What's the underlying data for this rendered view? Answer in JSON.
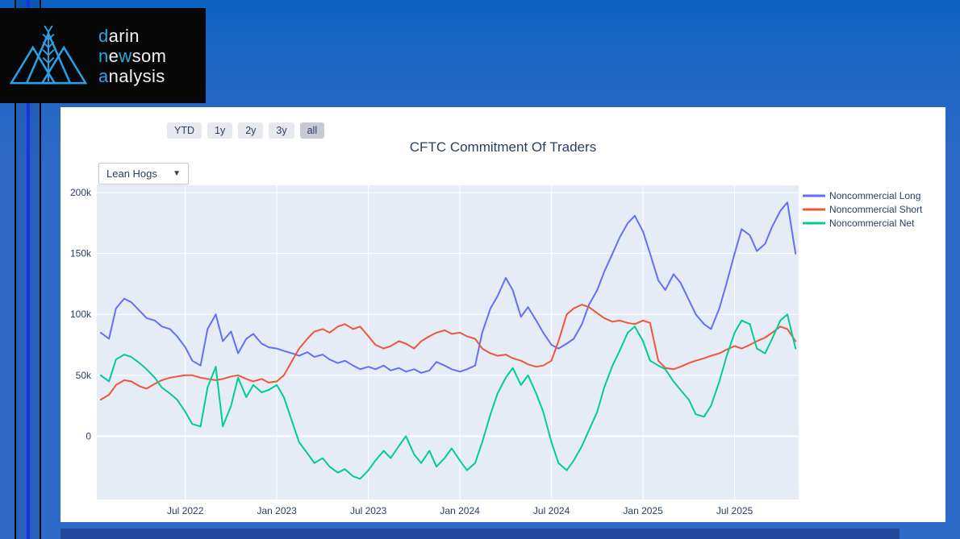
{
  "logo": {
    "accent_color": "#2BA8E0",
    "text_color": "#F2F2F2",
    "lines": [
      {
        "segments": [
          {
            "t": "d",
            "accent": true
          },
          {
            "t": "arin",
            "accent": false
          }
        ]
      },
      {
        "segments": [
          {
            "t": "n",
            "accent": true
          },
          {
            "t": "e",
            "accent": false
          },
          {
            "t": "w",
            "accent": true
          },
          {
            "t": "som",
            "accent": false
          }
        ]
      },
      {
        "segments": [
          {
            "t": "a",
            "accent": true
          },
          {
            "t": "nalysis",
            "accent": false
          }
        ]
      }
    ]
  },
  "theme": {
    "page-top": "#0A61C0",
    "page-bg": "#2E6AC7",
    "stripe-accent": "#1534E8",
    "stripe-dark": "#05070D",
    "logo-bg": "#070708",
    "card-bg": "#FFFFFF",
    "bottom-bar": "#20499B",
    "button-bg": "#E8E9EE",
    "button-active-bg": "#C7C9D3",
    "button-text": "#2A3F5F",
    "font-navy": "#2A3F5F",
    "dropdown-border": "#C3CBD6"
  },
  "range_buttons": [
    {
      "label": "YTD",
      "active": false
    },
    {
      "label": "1y",
      "active": false
    },
    {
      "label": "2y",
      "active": false
    },
    {
      "label": "3y",
      "active": false
    },
    {
      "label": "all",
      "active": true
    }
  ],
  "dropdown": {
    "value": "Lean Hogs",
    "chevron": "▼"
  },
  "chart_data": {
    "type": "line",
    "title": "CFTC Commitment Of Traders",
    "commodity": "Lean Hogs",
    "y_unit": "k (thousand contracts)",
    "grid": true,
    "legend_position": "right",
    "plot_bg": "#E5ECF6",
    "grid_color": "#FFFFFF",
    "font_color": "#2A3F5F",
    "ylim": [
      -52,
      206
    ],
    "xlim_months": [
      0.2,
      46.2
    ],
    "yticks": [
      {
        "label": "200k",
        "v": 200
      },
      {
        "label": "150k",
        "v": 150
      },
      {
        "label": "100k",
        "v": 100
      },
      {
        "label": "50k",
        "v": 50
      },
      {
        "label": "0",
        "v": 0
      }
    ],
    "xticks": [
      {
        "label": "Jul 2022",
        "date": "2022-07-01"
      },
      {
        "label": "Jan 2023",
        "date": "2023-01-01"
      },
      {
        "label": "Jul 2023",
        "date": "2023-07-01"
      },
      {
        "label": "Jan 2024",
        "date": "2024-01-01"
      },
      {
        "label": "Jul 2024",
        "date": "2024-07-01"
      },
      {
        "label": "Jan 2025",
        "date": "2025-01-01"
      },
      {
        "label": "Jul 2025",
        "date": "2025-07-01"
      }
    ],
    "x_dates": [
      "2022-01-15",
      "2022-02-01",
      "2022-02-15",
      "2022-03-01",
      "2022-03-15",
      "2022-04-01",
      "2022-04-15",
      "2022-05-01",
      "2022-05-15",
      "2022-06-01",
      "2022-06-15",
      "2022-07-01",
      "2022-07-15",
      "2022-08-01",
      "2022-08-15",
      "2022-09-01",
      "2022-09-15",
      "2022-10-01",
      "2022-10-15",
      "2022-11-01",
      "2022-11-15",
      "2022-12-01",
      "2022-12-15",
      "2023-01-01",
      "2023-01-15",
      "2023-02-01",
      "2023-02-15",
      "2023-03-01",
      "2023-03-15",
      "2023-04-01",
      "2023-04-15",
      "2023-05-01",
      "2023-05-15",
      "2023-06-01",
      "2023-06-15",
      "2023-07-01",
      "2023-07-15",
      "2023-08-01",
      "2023-08-15",
      "2023-09-01",
      "2023-09-15",
      "2023-10-01",
      "2023-10-15",
      "2023-11-01",
      "2023-11-15",
      "2023-12-01",
      "2023-12-15",
      "2024-01-01",
      "2024-01-15",
      "2024-02-01",
      "2024-02-15",
      "2024-03-01",
      "2024-03-15",
      "2024-04-01",
      "2024-04-15",
      "2024-05-01",
      "2024-05-15",
      "2024-06-01",
      "2024-06-15",
      "2024-07-01",
      "2024-07-15",
      "2024-08-01",
      "2024-08-15",
      "2024-09-01",
      "2024-09-15",
      "2024-10-01",
      "2024-10-15",
      "2024-11-01",
      "2024-11-15",
      "2024-12-01",
      "2024-12-15",
      "2025-01-01",
      "2025-01-15",
      "2025-02-01",
      "2025-02-15",
      "2025-03-01",
      "2025-03-15",
      "2025-04-01",
      "2025-04-15",
      "2025-05-01",
      "2025-05-15",
      "2025-06-01",
      "2025-06-15",
      "2025-07-01",
      "2025-07-15",
      "2025-08-01",
      "2025-08-15",
      "2025-09-01",
      "2025-09-15",
      "2025-10-01",
      "2025-10-15",
      "2025-11-01"
    ],
    "series": [
      {
        "name": "Noncommercial Long",
        "color": "#636EFA",
        "values": [
          85,
          80,
          105,
          113,
          110,
          103,
          97,
          95,
          90,
          88,
          82,
          73,
          62,
          58,
          88,
          100,
          78,
          86,
          68,
          80,
          84,
          76,
          73,
          72,
          70,
          68,
          66,
          69,
          65,
          67,
          63,
          60,
          62,
          58,
          55,
          57,
          55,
          58,
          54,
          56,
          53,
          55,
          52,
          54,
          61,
          58,
          55,
          53,
          55,
          58,
          85,
          105,
          115,
          130,
          120,
          98,
          106,
          95,
          85,
          75,
          72,
          76,
          80,
          92,
          108,
          120,
          135,
          150,
          163,
          175,
          181,
          168,
          150,
          128,
          120,
          133,
          126,
          112,
          100,
          92,
          88,
          105,
          125,
          150,
          170,
          165,
          152,
          158,
          172,
          185,
          192,
          150
        ]
      },
      {
        "name": "Noncommercial Short",
        "color": "#EF553B",
        "values": [
          30,
          34,
          42,
          46,
          45,
          41,
          39,
          43,
          46,
          48,
          49,
          50,
          50,
          48,
          47,
          46,
          47,
          49,
          50,
          47,
          45,
          47,
          44,
          45,
          50,
          62,
          72,
          80,
          86,
          88,
          85,
          90,
          92,
          88,
          90,
          82,
          75,
          72,
          74,
          78,
          76,
          72,
          78,
          82,
          85,
          87,
          84,
          85,
          82,
          80,
          72,
          68,
          66,
          67,
          64,
          62,
          59,
          57,
          58,
          62,
          78,
          100,
          105,
          108,
          106,
          101,
          97,
          94,
          95,
          93,
          92,
          95,
          93,
          62,
          56,
          55,
          57,
          60,
          62,
          64,
          66,
          68,
          71,
          74,
          72,
          75,
          78,
          81,
          85,
          90,
          88,
          78
        ]
      },
      {
        "name": "Noncommercial Net",
        "color": "#00CC96",
        "values": [
          50,
          45,
          63,
          67,
          65,
          60,
          55,
          48,
          40,
          35,
          30,
          20,
          10,
          8,
          40,
          57,
          8,
          25,
          48,
          32,
          42,
          36,
          38,
          42,
          32,
          12,
          -5,
          -14,
          -22,
          -18,
          -25,
          -30,
          -27,
          -33,
          -35,
          -28,
          -20,
          -12,
          -18,
          -8,
          0,
          -15,
          -22,
          -12,
          -25,
          -18,
          -10,
          -20,
          -28,
          -22,
          -5,
          18,
          35,
          48,
          56,
          42,
          50,
          35,
          20,
          -5,
          -22,
          -28,
          -20,
          -8,
          5,
          20,
          40,
          58,
          70,
          85,
          90,
          78,
          62,
          58,
          55,
          45,
          38,
          30,
          18,
          16,
          25,
          45,
          65,
          85,
          95,
          92,
          72,
          68,
          80,
          95,
          100,
          72
        ]
      }
    ]
  }
}
